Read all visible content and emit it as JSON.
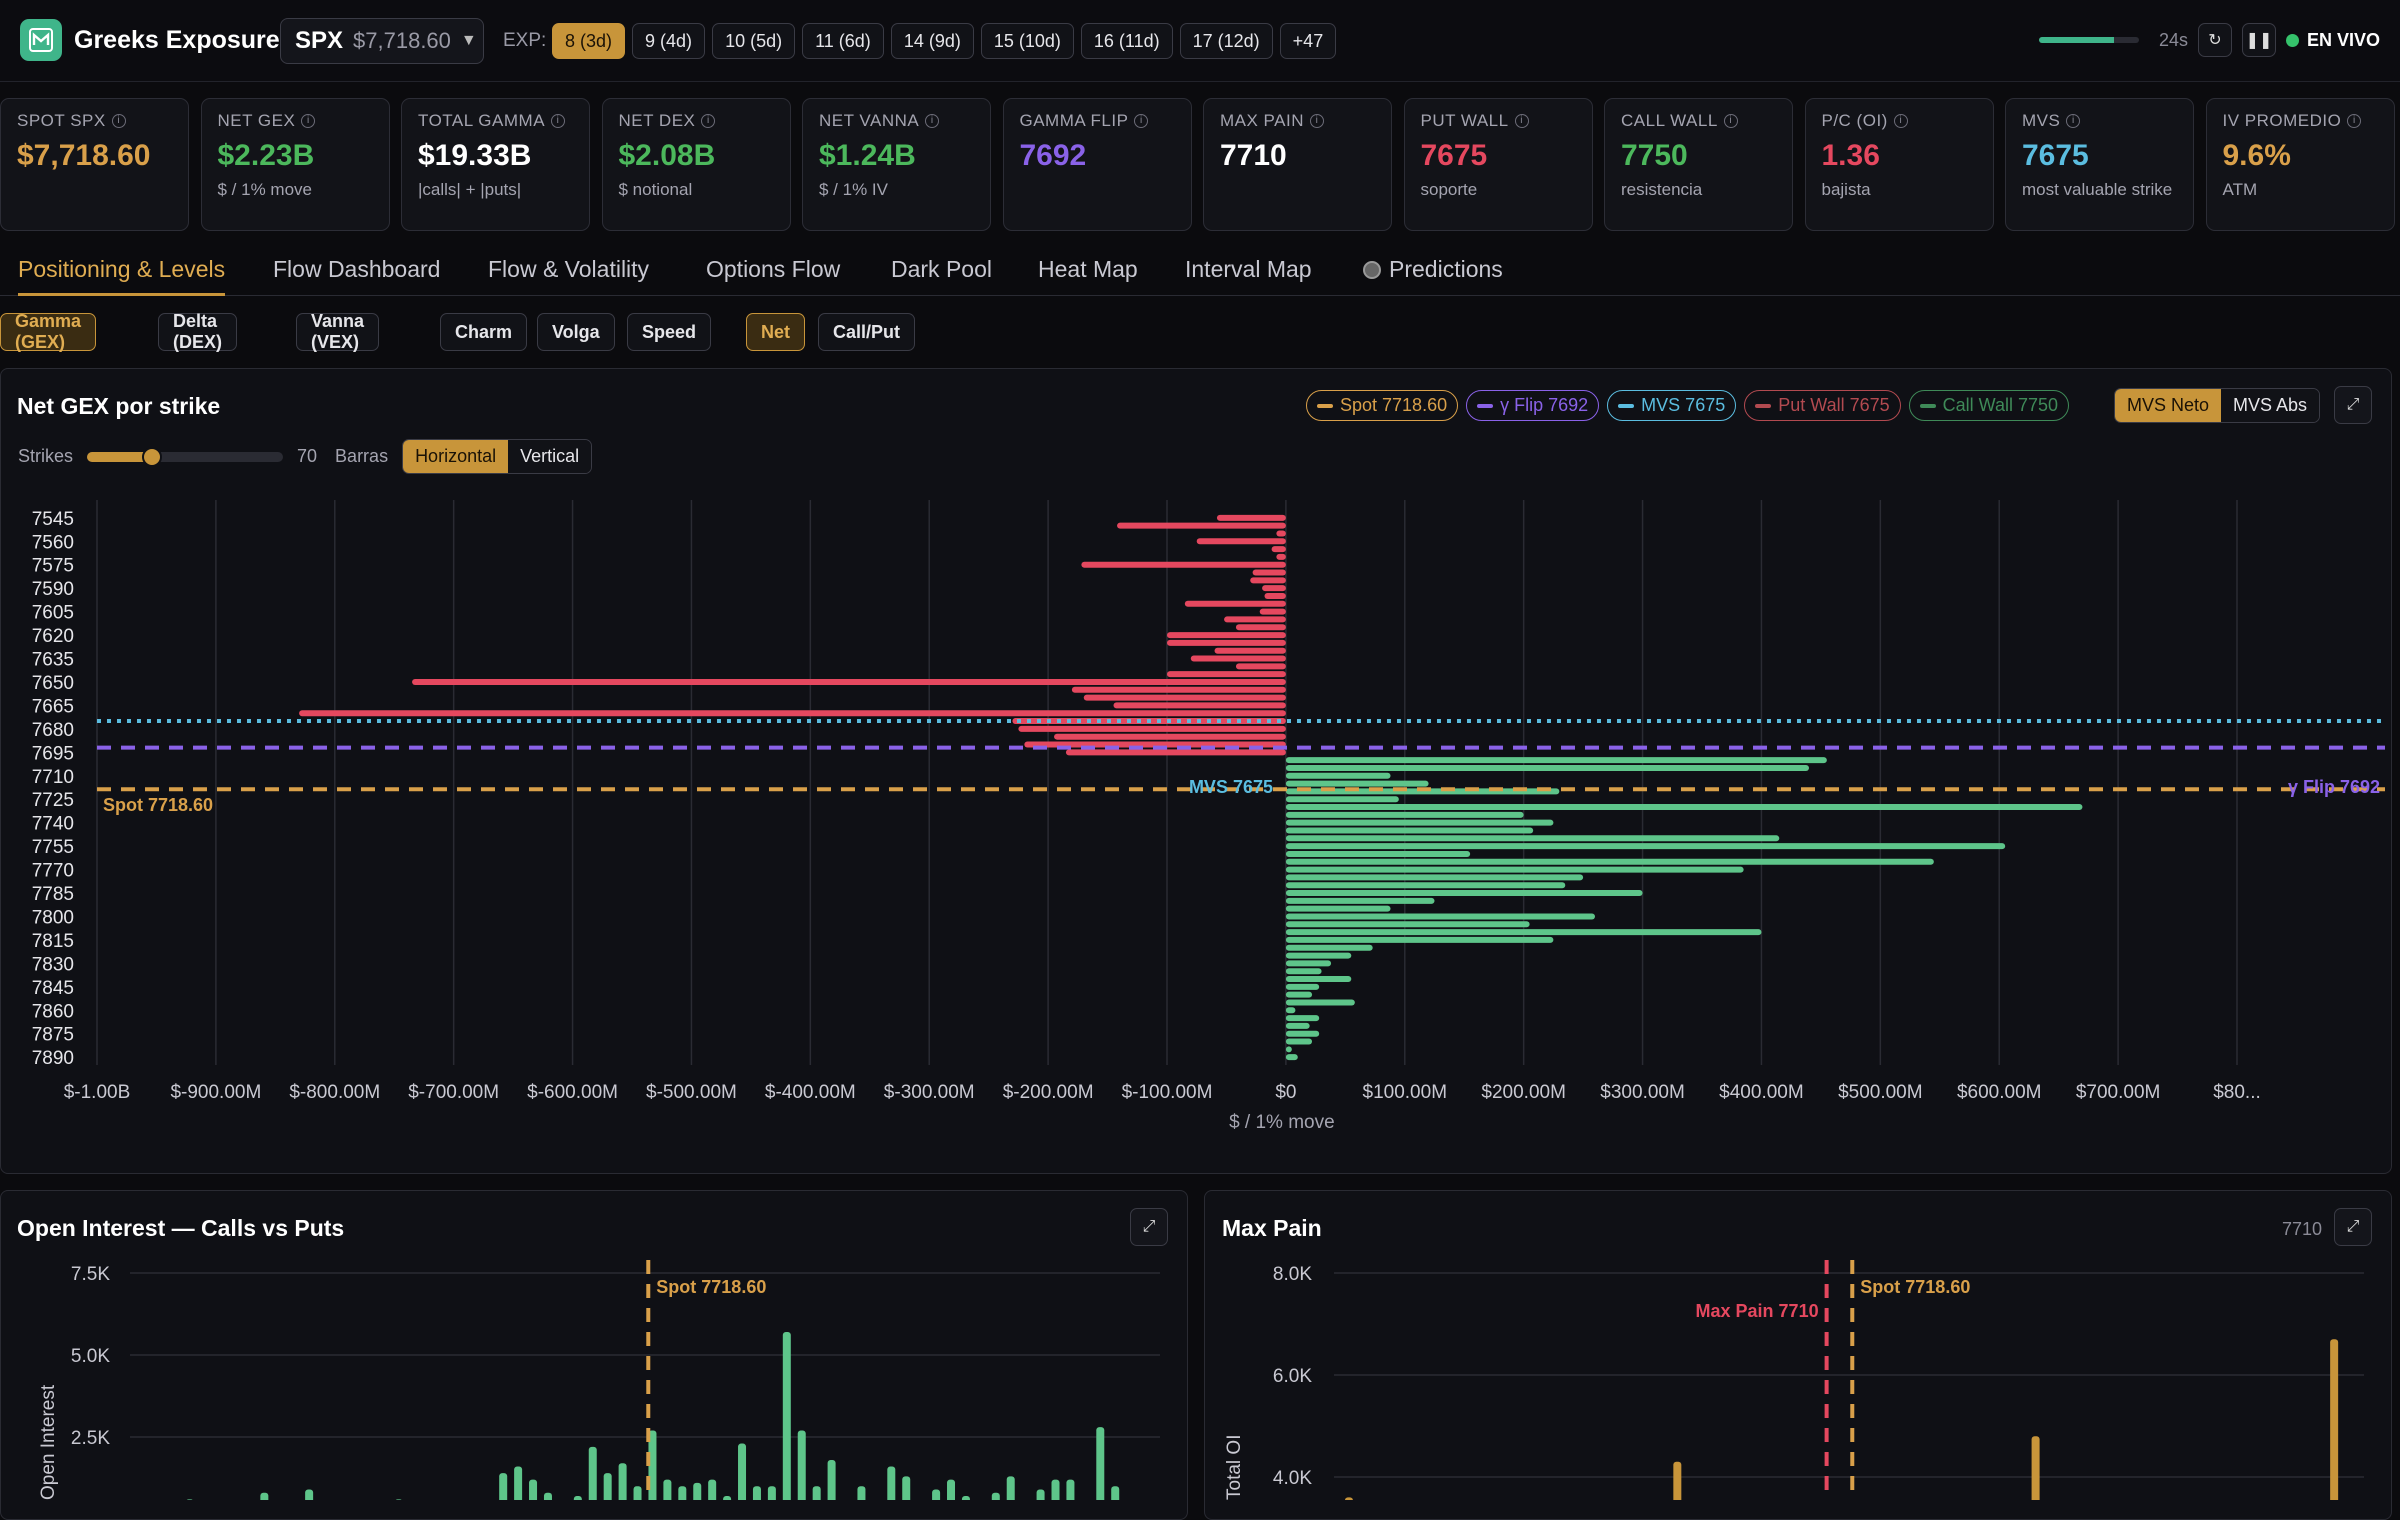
{
  "app": {
    "name": "Greeks Exposure"
  },
  "ticker": {
    "symbol": "SPX",
    "price": "$7,718.60"
  },
  "expirations": {
    "label": "EXP:",
    "items": [
      "8 (3d)",
      "9 (4d)",
      "10 (5d)",
      "11 (6d)",
      "14 (9d)",
      "15 (10d)",
      "16 (11d)",
      "17 (12d)",
      "+47"
    ],
    "active_index": 0
  },
  "status": {
    "refresh_progress": 0.75,
    "seconds": "24s",
    "live_label": "EN VIVO"
  },
  "kpis": [
    {
      "label": "SPOT SPX",
      "value": "$7,718.60",
      "sub": "",
      "color": "#d9a04a"
    },
    {
      "label": "NET GEX",
      "value": "$2.23B",
      "sub": "$ / 1% move",
      "color": "#4cb85c"
    },
    {
      "label": "TOTAL GAMMA",
      "value": "$19.33B",
      "sub": "|calls| + |puts|",
      "color": "#ffffff"
    },
    {
      "label": "NET DEX",
      "value": "$2.08B",
      "sub": "$ notional",
      "color": "#4cb85c"
    },
    {
      "label": "NET VANNA",
      "value": "$1.24B",
      "sub": "$ / 1% IV",
      "color": "#4cb85c"
    },
    {
      "label": "GAMMA FLIP",
      "value": "7692",
      "sub": "",
      "color": "#8a62e8"
    },
    {
      "label": "MAX PAIN",
      "value": "7710",
      "sub": "",
      "color": "#ffffff"
    },
    {
      "label": "PUT WALL",
      "value": "7675",
      "sub": "soporte",
      "color": "#e5485f"
    },
    {
      "label": "CALL WALL",
      "value": "7750",
      "sub": "resistencia",
      "color": "#4cb85c"
    },
    {
      "label": "P/C (OI)",
      "value": "1.36",
      "sub": "bajista",
      "color": "#e5485f"
    },
    {
      "label": "MVS",
      "value": "7675",
      "sub": "most valuable strike",
      "color": "#5bbde0"
    },
    {
      "label": "IV PROMEDIO",
      "value": "9.6%",
      "sub": "ATM",
      "color": "#d9a04a"
    }
  ],
  "tabs": [
    "Positioning & Levels",
    "Flow Dashboard",
    "Flow & Volatility",
    "Options Flow",
    "Dark Pool",
    "Heat Map",
    "Interval Map",
    "Predictions"
  ],
  "greek_tabs": [
    "Gamma (GEX)",
    "Delta (DEX)",
    "Vanna (VEX)",
    "Charm",
    "Volga",
    "Speed"
  ],
  "mode_tabs": [
    "Net",
    "Call/Put"
  ],
  "gex_panel": {
    "title": "Net GEX por strike",
    "legend": [
      {
        "label": "Spot 7718.60",
        "color": "#d9a04a"
      },
      {
        "label": "γ Flip 7692",
        "color": "#8a62e8"
      },
      {
        "label": "MVS 7675",
        "color": "#5bbde0"
      },
      {
        "label": "Put Wall 7675",
        "color": "#b24a50"
      },
      {
        "label": "Call Wall 7750",
        "color": "#3f8a58"
      }
    ],
    "mvs_toggle": [
      "MVS Neto",
      "MVS Abs"
    ],
    "strikes_label": "Strikes",
    "strikes_value": "70",
    "strikes_fraction": 0.33,
    "bars_label": "Barras",
    "orientation": [
      "Horizontal",
      "Vertical"
    ]
  },
  "oi_panel": {
    "title": "Open Interest — Calls vs Puts"
  },
  "maxpain_panel": {
    "title": "Max Pain",
    "value": "7710"
  },
  "chart_data": [
    {
      "type": "bar",
      "orientation": "horizontal",
      "title": "Net GEX por strike",
      "xlabel": "$ / 1% move",
      "xlim": [
        -1000000000,
        800000000
      ],
      "x_ticks": [
        "$-1.00B",
        "$-900.00M",
        "$-800.00M",
        "$-700.00M",
        "$-600.00M",
        "$-500.00M",
        "$-400.00M",
        "$-300.00M",
        "$-200.00M",
        "$-100.00M",
        "$0",
        "$100.00M",
        "$200.00M",
        "$300.00M",
        "$400.00M",
        "$500.00M",
        "$600.00M",
        "$700.00M",
        "$80..."
      ],
      "strike_min": 7540,
      "strike_max": 7895,
      "y_tick_labels": [
        "7545",
        "7560",
        "7575",
        "7590",
        "7605",
        "7620",
        "7635",
        "7650",
        "7665",
        "7680",
        "7695",
        "7710",
        "7725",
        "7740",
        "7755",
        "7770",
        "7785",
        "7800",
        "7815",
        "7830",
        "7845",
        "7860",
        "7875",
        "7890"
      ],
      "strikes": [
        7545,
        7550,
        7555,
        7560,
        7565,
        7570,
        7575,
        7580,
        7585,
        7590,
        7595,
        7600,
        7605,
        7610,
        7615,
        7620,
        7625,
        7630,
        7635,
        7640,
        7645,
        7650,
        7655,
        7660,
        7665,
        7670,
        7675,
        7680,
        7685,
        7690,
        7695,
        7700,
        7705,
        7710,
        7715,
        7720,
        7725,
        7730,
        7735,
        7740,
        7745,
        7750,
        7755,
        7760,
        7765,
        7770,
        7775,
        7780,
        7785,
        7790,
        7795,
        7800,
        7805,
        7810,
        7815,
        7820,
        7825,
        7830,
        7835,
        7840,
        7845,
        7850,
        7855,
        7860,
        7865,
        7870,
        7875,
        7880,
        7885,
        7890
      ],
      "values": [
        -58,
        -142,
        -8,
        -75,
        -12,
        -8,
        -172,
        -28,
        -30,
        -20,
        -18,
        -85,
        -22,
        -52,
        -42,
        -100,
        -100,
        -60,
        -80,
        -42,
        -100,
        -735,
        -180,
        -170,
        -145,
        -830,
        -230,
        -225,
        -195,
        -220,
        -185,
        455,
        440,
        88,
        120,
        230,
        95,
        670,
        200,
        225,
        208,
        415,
        605,
        155,
        545,
        385,
        250,
        235,
        300,
        125,
        88,
        260,
        205,
        400,
        225,
        73,
        55,
        38,
        30,
        55,
        28,
        22,
        58,
        8,
        28,
        20,
        28,
        22,
        5,
        10
      ],
      "values_unit": "$M",
      "reference_lines": [
        {
          "label": "Spot 7718.60",
          "strike": 7718.6,
          "color": "#d9a04a"
        },
        {
          "label": "γ Flip 7692",
          "strike": 7692,
          "color": "#8a62e8"
        },
        {
          "label": "MVS 7675",
          "strike": 7675,
          "color": "#5bbde0"
        }
      ],
      "grid": true
    },
    {
      "type": "bar",
      "title": "Open Interest — Calls vs Puts",
      "ylabel": "Open Interest",
      "ylim": [
        0,
        7500
      ],
      "y_ticks": [
        "7.5K",
        "5.0K",
        "2.5K"
      ],
      "spot_label": "Spot 7718.60",
      "spot_strike": 7718.6,
      "strike_min": 7545,
      "strike_max": 7890,
      "calls": {
        "strikes": [
          7565,
          7590,
          7605,
          7635,
          7655,
          7665,
          7670,
          7675,
          7680,
          7685,
          7690,
          7695,
          7700,
          7705,
          7710,
          7715,
          7720,
          7725,
          7730,
          7735,
          7740,
          7745,
          7750,
          7755,
          7760,
          7765,
          7770,
          7775,
          7780,
          7790,
          7800,
          7805,
          7810,
          7815,
          7820,
          7825,
          7830,
          7835,
          7840,
          7850,
          7855,
          7860,
          7865,
          7870,
          7875,
          7880
        ],
        "values": [
          600,
          800,
          900,
          600,
          500,
          400,
          1400,
          1600,
          1200,
          800,
          500,
          700,
          2200,
          1400,
          1700,
          1000,
          2700,
          1200,
          1000,
          1100,
          1200,
          700,
          2300,
          1000,
          1000,
          5700,
          2700,
          1000,
          1800,
          1000,
          1600,
          1300,
          500,
          900,
          1200,
          700,
          500,
          800,
          1300,
          900,
          1200,
          1200,
          500,
          2800,
          1000,
          500
        ],
        "color": "#5ec58a"
      }
    },
    {
      "type": "bar",
      "title": "Max Pain",
      "ylabel": "Total OI",
      "ylim": [
        2000,
        8000
      ],
      "y_ticks": [
        "8.0K",
        "6.0K",
        "4.0K"
      ],
      "max_pain_label": "Max Pain 7710",
      "max_pain_strike": 7710,
      "spot_label": "Spot 7718.60",
      "spot_strike": 7718.6,
      "strike_min": 7545,
      "strike_max": 7890,
      "strikes": [
        7550,
        7660,
        7790,
        7780,
        7880
      ],
      "values": [
        3600,
        4300,
        3200,
        4800,
        6700
      ],
      "color": "#c8953a"
    }
  ]
}
